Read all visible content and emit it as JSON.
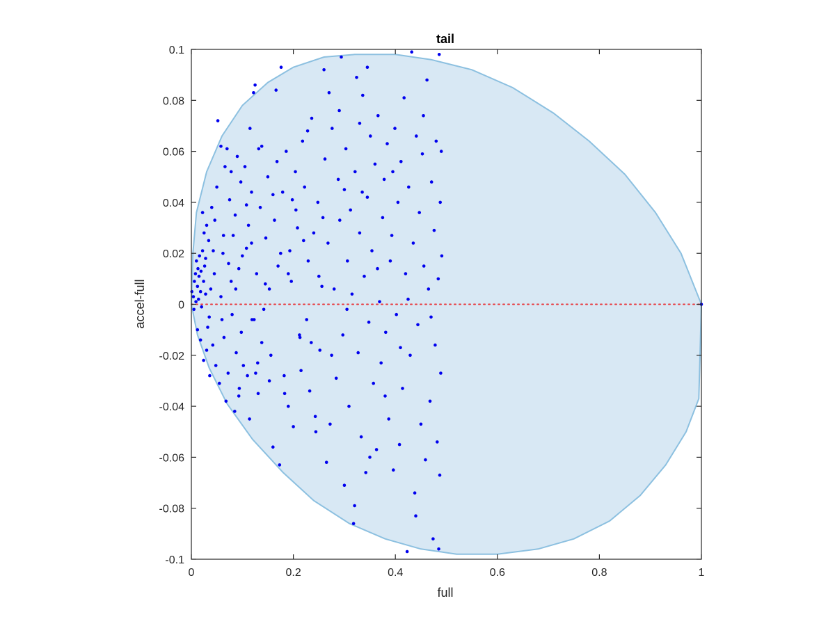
{
  "chart_data": {
    "type": "scatter",
    "title": "tail",
    "xlabel": "full",
    "ylabel": "accel-full",
    "xlim": [
      0,
      1
    ],
    "ylim": [
      -0.1,
      0.1
    ],
    "xticks": [
      "0",
      "0.2",
      "0.4",
      "0.6",
      "0.8",
      "1"
    ],
    "yticks": [
      "-0.1",
      "-0.08",
      "-0.06",
      "-0.04",
      "-0.02",
      "0",
      "0.02",
      "0.04",
      "0.06",
      "0.08",
      "0.1"
    ],
    "grid": false,
    "legend": "none",
    "colors": {
      "points": "#0000ee",
      "region_fill": "#d8e8f4",
      "region_edge": "#8cc0e0",
      "zero_line": "#e8383d",
      "axes": "#262626"
    },
    "region_boundary": [
      [
        0.0,
        0.0
      ],
      [
        0.003,
        0.02
      ],
      [
        0.01,
        0.036
      ],
      [
        0.03,
        0.052
      ],
      [
        0.06,
        0.066
      ],
      [
        0.1,
        0.078
      ],
      [
        0.15,
        0.087
      ],
      [
        0.2,
        0.093
      ],
      [
        0.26,
        0.097
      ],
      [
        0.32,
        0.098
      ],
      [
        0.4,
        0.098
      ],
      [
        0.47,
        0.096
      ],
      [
        0.55,
        0.092
      ],
      [
        0.63,
        0.085
      ],
      [
        0.71,
        0.075
      ],
      [
        0.78,
        0.064
      ],
      [
        0.85,
        0.051
      ],
      [
        0.91,
        0.036
      ],
      [
        0.96,
        0.02
      ],
      [
        1.0,
        0.0
      ],
      [
        0.995,
        -0.037
      ],
      [
        0.97,
        -0.05
      ],
      [
        0.93,
        -0.063
      ],
      [
        0.88,
        -0.075
      ],
      [
        0.82,
        -0.085
      ],
      [
        0.75,
        -0.092
      ],
      [
        0.68,
        -0.096
      ],
      [
        0.6,
        -0.098
      ],
      [
        0.52,
        -0.098
      ],
      [
        0.45,
        -0.096
      ],
      [
        0.38,
        -0.092
      ],
      [
        0.31,
        -0.086
      ],
      [
        0.24,
        -0.077
      ],
      [
        0.18,
        -0.066
      ],
      [
        0.12,
        -0.053
      ],
      [
        0.07,
        -0.039
      ],
      [
        0.035,
        -0.025
      ],
      [
        0.012,
        -0.012
      ],
      [
        0.0,
        0.0
      ]
    ],
    "zero_line": {
      "y": 0,
      "x_range": [
        0,
        1
      ]
    },
    "points": [
      [
        0.001,
        0.005
      ],
      [
        0.004,
        0.003
      ],
      [
        0.006,
        0.009
      ],
      [
        0.008,
        0.012
      ],
      [
        0.009,
        0.001
      ],
      [
        0.01,
        0.017
      ],
      [
        0.012,
        0.007
      ],
      [
        0.013,
        0.014
      ],
      [
        0.014,
        0.002
      ],
      [
        0.015,
        0.011
      ],
      [
        0.016,
        0.019
      ],
      [
        0.018,
        0.005
      ],
      [
        0.019,
        0.013
      ],
      [
        0.02,
        -0.001
      ],
      [
        0.022,
        0.021
      ],
      [
        0.024,
        0.009
      ],
      [
        0.025,
        0.028
      ],
      [
        0.026,
        0.015
      ],
      [
        0.028,
        0.004
      ],
      [
        0.03,
        0.031
      ],
      [
        0.005,
        -0.002
      ],
      [
        0.012,
        -0.01
      ],
      [
        0.018,
        -0.014
      ],
      [
        0.024,
        -0.022
      ],
      [
        0.03,
        -0.018
      ],
      [
        0.036,
        -0.028
      ],
      [
        0.022,
        0.036
      ],
      [
        0.034,
        0.025
      ],
      [
        0.04,
        0.038
      ],
      [
        0.045,
        0.012
      ],
      [
        0.032,
        -0.009
      ],
      [
        0.042,
        -0.016
      ],
      [
        0.048,
        -0.024
      ],
      [
        0.055,
        -0.031
      ],
      [
        0.028,
        0.018
      ],
      [
        0.038,
        0.006
      ],
      [
        0.05,
        0.046
      ],
      [
        0.052,
        0.072
      ],
      [
        0.058,
        0.062
      ],
      [
        0.046,
        0.033
      ],
      [
        0.062,
        0.02
      ],
      [
        0.066,
        0.054
      ],
      [
        0.07,
        0.061
      ],
      [
        0.075,
        0.041
      ],
      [
        0.078,
        0.009
      ],
      [
        0.082,
        0.027
      ],
      [
        0.086,
        0.035
      ],
      [
        0.09,
        0.058
      ],
      [
        0.093,
        0.014
      ],
      [
        0.097,
        0.048
      ],
      [
        0.06,
        -0.006
      ],
      [
        0.064,
        -0.013
      ],
      [
        0.068,
        -0.038
      ],
      [
        0.072,
        -0.027
      ],
      [
        0.08,
        -0.004
      ],
      [
        0.085,
        -0.042
      ],
      [
        0.088,
        -0.019
      ],
      [
        0.094,
        -0.033
      ],
      [
        0.098,
        -0.011
      ],
      [
        0.102,
        -0.024
      ],
      [
        0.105,
        0.054
      ],
      [
        0.108,
        0.022
      ],
      [
        0.112,
        0.031
      ],
      [
        0.115,
        0.069
      ],
      [
        0.118,
        0.044
      ],
      [
        0.122,
        0.083
      ],
      [
        0.125,
        0.086
      ],
      [
        0.128,
        0.012
      ],
      [
        0.132,
        0.061
      ],
      [
        0.135,
        0.038
      ],
      [
        0.11,
        -0.028
      ],
      [
        0.114,
        -0.045
      ],
      [
        0.119,
        -0.006
      ],
      [
        0.126,
        -0.027
      ],
      [
        0.131,
        -0.035
      ],
      [
        0.138,
        -0.015
      ],
      [
        0.142,
        -0.002
      ],
      [
        0.146,
        0.026
      ],
      [
        0.15,
        0.05
      ],
      [
        0.153,
        0.006
      ],
      [
        0.156,
        -0.02
      ],
      [
        0.16,
        -0.056
      ],
      [
        0.163,
        0.033
      ],
      [
        0.166,
        0.084
      ],
      [
        0.17,
        0.015
      ],
      [
        0.173,
        -0.063
      ],
      [
        0.176,
        0.093
      ],
      [
        0.179,
        0.044
      ],
      [
        0.182,
        -0.028
      ],
      [
        0.186,
        0.06
      ],
      [
        0.19,
        -0.04
      ],
      [
        0.193,
        0.021
      ],
      [
        0.196,
        0.009
      ],
      [
        0.2,
        -0.048
      ],
      [
        0.204,
        0.052
      ],
      [
        0.208,
        0.03
      ],
      [
        0.212,
        -0.012
      ],
      [
        0.215,
        -0.026
      ],
      [
        0.218,
        0.064
      ],
      [
        0.222,
        0.046
      ],
      [
        0.226,
        -0.006
      ],
      [
        0.229,
        0.017
      ],
      [
        0.232,
        -0.034
      ],
      [
        0.236,
        0.073
      ],
      [
        0.24,
        0.028
      ],
      [
        0.244,
        -0.05
      ],
      [
        0.248,
        0.04
      ],
      [
        0.252,
        -0.018
      ],
      [
        0.256,
        0.007
      ],
      [
        0.26,
        0.092
      ],
      [
        0.262,
        0.057
      ],
      [
        0.265,
        -0.062
      ],
      [
        0.268,
        0.024
      ],
      [
        0.272,
        -0.047
      ],
      [
        0.276,
        0.069
      ],
      [
        0.28,
        0.006
      ],
      [
        0.284,
        -0.029
      ],
      [
        0.288,
        0.049
      ],
      [
        0.291,
        0.033
      ],
      [
        0.294,
        0.097
      ],
      [
        0.297,
        -0.012
      ],
      [
        0.3,
        -0.071
      ],
      [
        0.303,
        0.061
      ],
      [
        0.306,
        0.017
      ],
      [
        0.309,
        -0.04
      ],
      [
        0.312,
        0.037
      ],
      [
        0.315,
        0.004
      ],
      [
        0.318,
        -0.086
      ],
      [
        0.321,
        0.052
      ],
      [
        0.324,
        0.089
      ],
      [
        0.327,
        -0.019
      ],
      [
        0.33,
        0.028
      ],
      [
        0.333,
        -0.052
      ],
      [
        0.336,
        0.082
      ],
      [
        0.339,
        0.011
      ],
      [
        0.342,
        -0.066
      ],
      [
        0.345,
        0.042
      ],
      [
        0.348,
        -0.007
      ],
      [
        0.351,
        0.066
      ],
      [
        0.354,
        0.021
      ],
      [
        0.357,
        -0.031
      ],
      [
        0.36,
        0.055
      ],
      [
        0.363,
        -0.057
      ],
      [
        0.366,
        0.074
      ],
      [
        0.369,
        0.001
      ],
      [
        0.372,
        -0.023
      ],
      [
        0.375,
        0.034
      ],
      [
        0.378,
        0.049
      ],
      [
        0.381,
        -0.011
      ],
      [
        0.384,
        0.063
      ],
      [
        0.387,
        -0.045
      ],
      [
        0.39,
        0.017
      ],
      [
        0.393,
        0.027
      ],
      [
        0.396,
        -0.065
      ],
      [
        0.399,
        0.069
      ],
      [
        0.402,
        -0.004
      ],
      [
        0.405,
        0.04
      ],
      [
        0.408,
        -0.055
      ],
      [
        0.411,
        0.056
      ],
      [
        0.414,
        -0.033
      ],
      [
        0.417,
        0.081
      ],
      [
        0.42,
        0.012
      ],
      [
        0.423,
        -0.097
      ],
      [
        0.426,
        0.046
      ],
      [
        0.429,
        -0.02
      ],
      [
        0.432,
        0.099
      ],
      [
        0.435,
        0.024
      ],
      [
        0.438,
        -0.074
      ],
      [
        0.441,
        0.066
      ],
      [
        0.444,
        -0.008
      ],
      [
        0.447,
        0.036
      ],
      [
        0.45,
        -0.047
      ],
      [
        0.453,
        0.059
      ],
      [
        0.456,
        0.015
      ],
      [
        0.459,
        -0.061
      ],
      [
        0.462,
        0.088
      ],
      [
        0.465,
        0.006
      ],
      [
        0.468,
        -0.038
      ],
      [
        0.471,
        0.048
      ],
      [
        0.474,
        -0.092
      ],
      [
        0.476,
        0.029
      ],
      [
        0.478,
        -0.016
      ],
      [
        0.48,
        0.064
      ],
      [
        0.482,
        -0.054
      ],
      [
        0.484,
        0.01
      ],
      [
        0.486,
        0.098
      ],
      [
        0.487,
        -0.067
      ],
      [
        0.488,
        0.04
      ],
      [
        0.489,
        -0.027
      ],
      [
        0.49,
        0.06
      ],
      [
        0.491,
        0.019
      ],
      [
        0.485,
        -0.096
      ],
      [
        0.47,
        -0.005
      ],
      [
        0.455,
        0.074
      ],
      [
        0.44,
        -0.083
      ],
      [
        0.425,
        0.002
      ],
      [
        0.41,
        -0.017
      ],
      [
        0.395,
        0.052
      ],
      [
        0.38,
        -0.036
      ],
      [
        0.365,
        0.014
      ],
      [
        0.35,
        -0.06
      ],
      [
        0.335,
        0.044
      ],
      [
        0.32,
        -0.079
      ],
      [
        0.305,
        -0.002
      ],
      [
        0.29,
        0.076
      ],
      [
        0.275,
        -0.02
      ],
      [
        0.258,
        0.034
      ],
      [
        0.243,
        -0.044
      ],
      [
        0.228,
        0.068
      ],
      [
        0.213,
        -0.013
      ],
      [
        0.198,
        0.041
      ],
      [
        0.183,
        -0.035
      ],
      [
        0.168,
        0.056
      ],
      [
        0.153,
        -0.03
      ],
      [
        0.138,
        0.062
      ],
      [
        0.123,
        -0.006
      ],
      [
        0.108,
        0.039
      ],
      [
        0.093,
        -0.036
      ],
      [
        0.078,
        0.052
      ],
      [
        0.063,
        0.027
      ],
      [
        0.345,
        0.093
      ],
      [
        0.33,
        0.071
      ],
      [
        0.3,
        0.045
      ],
      [
        0.27,
        0.083
      ],
      [
        0.25,
        0.011
      ],
      [
        0.235,
        -0.015
      ],
      [
        0.22,
        0.025
      ],
      [
        0.205,
        0.037
      ],
      [
        0.19,
        0.012
      ],
      [
        0.175,
        0.02
      ],
      [
        0.16,
        0.043
      ],
      [
        0.145,
        0.008
      ],
      [
        0.13,
        -0.023
      ],
      [
        0.118,
        0.024
      ],
      [
        0.1,
        0.019
      ],
      [
        0.087,
        0.006
      ],
      [
        0.073,
        0.016
      ],
      [
        0.058,
        0.003
      ],
      [
        0.043,
        0.021
      ],
      [
        0.035,
        -0.005
      ],
      [
        1.0,
        0.0
      ]
    ]
  }
}
